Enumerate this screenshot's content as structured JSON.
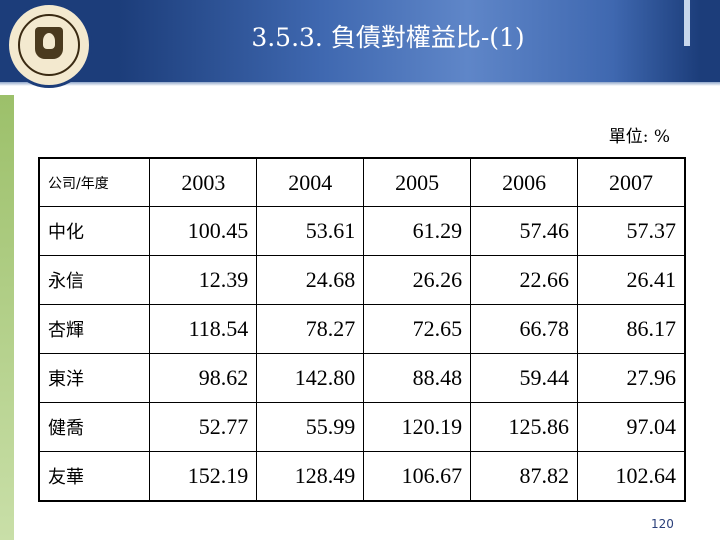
{
  "header": {
    "title": "3.5.3. 負債對權益比-(1)",
    "logo_icon": "university-seal-icon"
  },
  "unit_label": "單位: %",
  "table": {
    "corner_header": "公司/年度",
    "years": [
      "2003",
      "2004",
      "2005",
      "2006",
      "2007"
    ],
    "rows": [
      {
        "name": "中化",
        "values": [
          "100.45",
          "53.61",
          "61.29",
          "57.46",
          "57.37"
        ]
      },
      {
        "name": "永信",
        "values": [
          "12.39",
          "24.68",
          "26.26",
          "22.66",
          "26.41"
        ]
      },
      {
        "name": "杏輝",
        "values": [
          "118.54",
          "78.27",
          "72.65",
          "66.78",
          "86.17"
        ]
      },
      {
        "name": "東洋",
        "values": [
          "98.62",
          "142.80",
          "88.48",
          "59.44",
          "27.96"
        ]
      },
      {
        "name": "健喬",
        "values": [
          "52.77",
          "55.99",
          "120.19",
          "125.86",
          "97.04"
        ]
      },
      {
        "name": "友華",
        "values": [
          "152.19",
          "128.49",
          "106.67",
          "87.82",
          "102.64"
        ]
      }
    ]
  },
  "page_number": "120",
  "colors": {
    "header_bg": "#1c3d7a",
    "side_stripe": "#9cc06a",
    "page_number": "#2a3f7a"
  }
}
